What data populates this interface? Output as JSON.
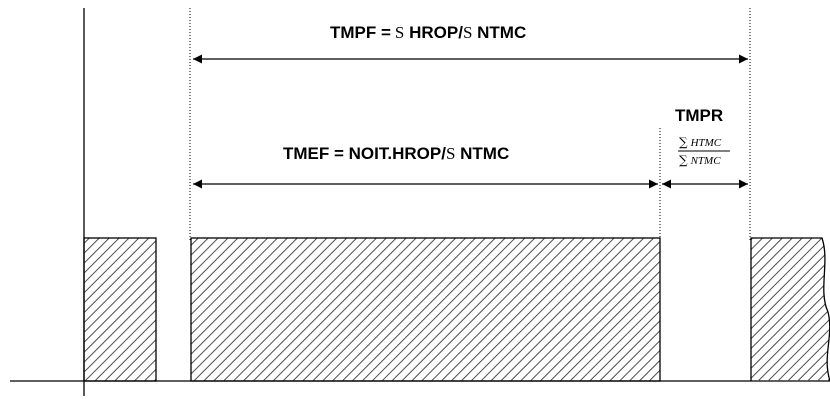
{
  "labels": {
    "tmpf": {
      "lead": "TMPF =",
      "s1": "S",
      "mid": " HROP/",
      "s2": "S",
      "tail": " NTMC"
    },
    "tmpr": "TMPR",
    "tmef": {
      "lead": "TMEF = NOIT.HROP/",
      "s": "S",
      "tail": " NTMC"
    },
    "fraction": {
      "num_sym": "∑",
      "num": "HTMC",
      "den_sym": "∑",
      "den": "NTMC"
    }
  },
  "colors": {
    "ink": "#000000",
    "background": "#ffffff",
    "hatch": "#4d4d4d"
  },
  "icons": {
    "arrowhead": "filled-triangle-arrowhead"
  }
}
